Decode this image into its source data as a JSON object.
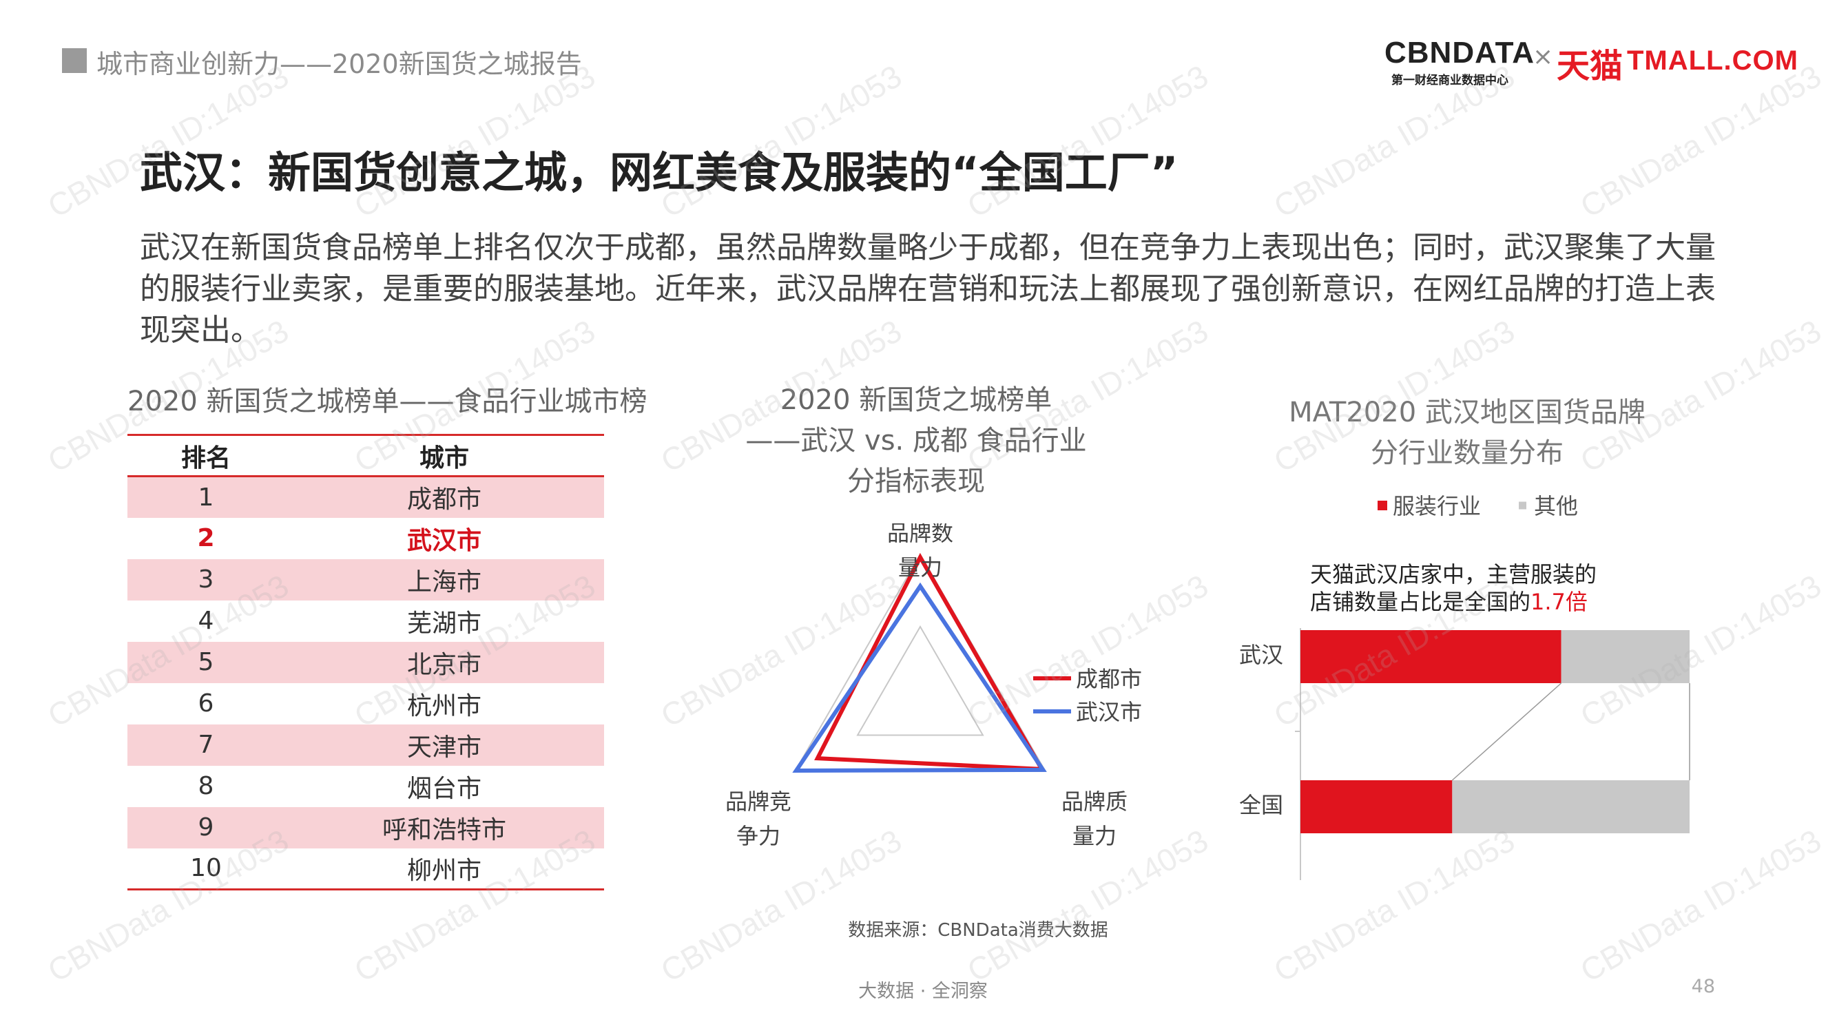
{
  "header": {
    "section_title": "城市商业创新力——2020新国货之城报告",
    "logo_cbn": "CBNDATA",
    "logo_cbn_sub": "第一财经商业数据中心",
    "logo_x": "×",
    "logo_tmall_cn": "天猫",
    "logo_tmall_en": "TMALL.COM"
  },
  "title": "武汉：新国货创意之城，网红美食及服装的“全国工厂”",
  "intro": "武汉在新国货食品榜单上排名仅次于成都，虽然品牌数量略少于成都，但在竞争力上表现出色；同时，武汉聚集了大量的服装行业卖家，是重要的服装基地。近年来，武汉品牌在营销和玩法上都展现了强创新意识，在网红品牌的打造上表现突出。",
  "ranking": {
    "title": "2020 新国货之城榜单——食品行业城市榜",
    "col_rank": "排名",
    "col_city": "城市",
    "rows": [
      {
        "rank": "1",
        "city": "成都市"
      },
      {
        "rank": "2",
        "city": "武汉市"
      },
      {
        "rank": "3",
        "city": "上海市"
      },
      {
        "rank": "4",
        "city": "芜湖市"
      },
      {
        "rank": "5",
        "city": "北京市"
      },
      {
        "rank": "6",
        "city": "杭州市"
      },
      {
        "rank": "7",
        "city": "天津市"
      },
      {
        "rank": "8",
        "city": "烟台市"
      },
      {
        "rank": "9",
        "city": "呼和浩特市"
      },
      {
        "rank": "10",
        "city": "柳州市"
      }
    ]
  },
  "radar": {
    "title_line1": "2020 新国货之城榜单",
    "title_line2": "——武汉 vs. 成都 食品行业",
    "title_line3": "分指标表现",
    "source": "数据来源：CBNData消费大数据"
  },
  "bar": {
    "title_line1": "MAT2020 武汉地区国货品牌",
    "title_line2": "分行业数量分布",
    "annotation_line1": "天猫武汉店家中，主营服装的",
    "annotation_line2_prefix": "店铺数量占比是全国的",
    "annotation_highlight": "1.7倍"
  },
  "chart_data": [
    {
      "type": "table",
      "title": "2020 新国货之城榜单——食品行业城市榜",
      "columns": [
        "排名",
        "城市"
      ],
      "rows": [
        [
          "1",
          "成都市"
        ],
        [
          "2",
          "武汉市"
        ],
        [
          "3",
          "上海市"
        ],
        [
          "4",
          "芜湖市"
        ],
        [
          "5",
          "北京市"
        ],
        [
          "6",
          "杭州市"
        ],
        [
          "7",
          "天津市"
        ],
        [
          "8",
          "烟台市"
        ],
        [
          "9",
          "呼和浩特市"
        ],
        [
          "10",
          "柳州市"
        ]
      ],
      "highlight_row": 1
    },
    {
      "type": "radar",
      "title": "2020 新国货之城榜单——武汉 vs. 成都 食品行业分指标表现",
      "axes": [
        {
          "line1": "品牌数",
          "line2": "量力"
        },
        {
          "line1": "品牌质",
          "line2": "量力"
        },
        {
          "line1": "品牌竞",
          "line2": "争力"
        }
      ],
      "rmax": 1.0,
      "grid_levels": [
        0.5,
        1.0
      ],
      "series": [
        {
          "name": "成都市",
          "color": "#e0141e",
          "values": [
            0.98,
            0.97,
            0.82
          ]
        },
        {
          "name": "武汉市",
          "color": "#4a74e0",
          "values": [
            0.78,
            0.98,
            0.99
          ]
        }
      ]
    },
    {
      "type": "bar",
      "orientation": "horizontal",
      "stacked": true,
      "percent": true,
      "title": "MAT2020 武汉地区国货品牌分行业数量分布",
      "categories": [
        "武汉",
        "全国"
      ],
      "series": [
        {
          "name": "服装行业",
          "color": "#e0141e",
          "values": [
            67,
            39
          ]
        },
        {
          "name": "其他",
          "color": "#c8c8c8",
          "values": [
            33,
            61
          ]
        }
      ],
      "xlim": [
        0,
        100
      ]
    }
  ],
  "colors": {
    "accent_red": "#e0141e",
    "wuhan_blue": "#4a74e0",
    "table_pink": "#f8d2d6",
    "other_gray": "#c8c8c8"
  },
  "watermark": "CBNData ID:14053",
  "footer": {
    "tagline": "大数据 · 全洞察",
    "page_number": "48"
  }
}
